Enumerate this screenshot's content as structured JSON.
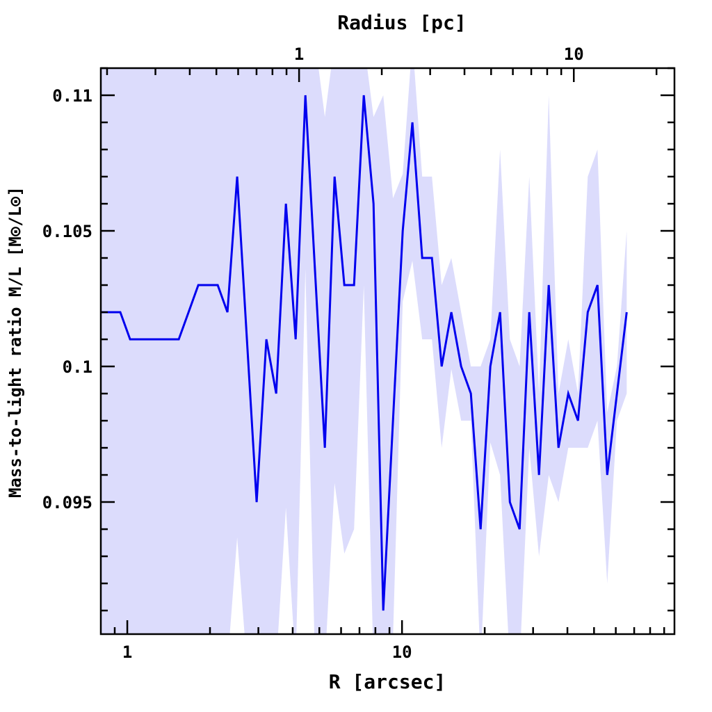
{
  "chart_data": {
    "type": "line",
    "title": "",
    "xlabel": "R [arcsec]",
    "ylabel": "Mass-to-light ratio M/L [M⊙/L⊙]",
    "top_xlabel": "Radius [pc]",
    "x_scale": "log",
    "xlim": [
      0.801,
      98.1
    ],
    "ylim": [
      0.09013,
      0.111
    ],
    "arcsec_per_pc": 4.22,
    "xticks": [
      {
        "value": 1,
        "label": "1"
      },
      {
        "value": 10,
        "label": "10"
      }
    ],
    "top_xticks": [
      {
        "value": 1,
        "label": "1"
      },
      {
        "value": 10,
        "label": "10"
      }
    ],
    "yticks": [
      {
        "value": 0.095,
        "label": "0.095"
      },
      {
        "value": 0.1,
        "label": "0.1"
      },
      {
        "value": 0.105,
        "label": "0.105"
      },
      {
        "value": 0.11,
        "label": "0.11"
      }
    ],
    "grid": false,
    "colors": {
      "line": "#0000ee",
      "band": "#dcdcfc"
    },
    "x": [
      0.801,
      0.869,
      0.943,
      1.024,
      1.111,
      1.205,
      1.308,
      1.419,
      1.539,
      1.671,
      1.813,
      1.967,
      2.134,
      2.315,
      2.512,
      2.725,
      2.957,
      3.209,
      3.482,
      3.778,
      4.1,
      4.449,
      4.825,
      5.236,
      5.681,
      6.165,
      6.689,
      7.258,
      7.875,
      8.543,
      9.271,
      10.06,
      10.91,
      11.84,
      12.85,
      13.94,
      15.12,
      16.41,
      17.81,
      19.32,
      20.96,
      22.75,
      24.69,
      26.79,
      29.06,
      31.53,
      34.21,
      37.12,
      40.28,
      43.71,
      47.42,
      51.45,
      55.83,
      60.58,
      65.73
    ],
    "series": [
      {
        "name": "M/L",
        "values": [
          0.102,
          0.102,
          0.102,
          0.101,
          0.101,
          0.101,
          0.101,
          0.101,
          0.101,
          0.102,
          0.103,
          0.103,
          0.103,
          0.102,
          0.107,
          0.101,
          0.095,
          0.101,
          0.099,
          0.106,
          0.101,
          0.11,
          0.1035,
          0.097,
          0.107,
          0.103,
          0.103,
          0.11,
          0.106,
          0.091,
          0.098,
          0.105,
          0.109,
          0.104,
          0.104,
          0.1,
          0.102,
          0.1,
          0.099,
          0.094,
          0.1,
          0.102,
          0.095,
          0.094,
          0.102,
          0.096,
          0.103,
          0.097,
          0.099,
          0.098,
          0.102,
          0.103,
          0.096,
          0.099,
          0.102
        ]
      }
    ],
    "band": {
      "name": "uncertainty",
      "upper": [
        0.112,
        0.112,
        0.112,
        0.112,
        0.112,
        0.112,
        0.112,
        0.112,
        0.112,
        0.112,
        0.112,
        0.112,
        0.112,
        0.112,
        0.112,
        0.112,
        0.112,
        0.112,
        0.112,
        0.112,
        0.112,
        0.112,
        0.112,
        0.1092,
        0.112,
        0.112,
        0.112,
        0.112,
        0.1092,
        0.11,
        0.1062,
        0.1071,
        0.112,
        0.107,
        0.107,
        0.103,
        0.104,
        0.102,
        0.1,
        0.1,
        0.101,
        0.108,
        0.101,
        0.1,
        0.107,
        0.099,
        0.11,
        0.099,
        0.101,
        0.099,
        0.107,
        0.108,
        0.0983,
        0.1,
        0.105
      ],
      "lower": [
        0.089,
        0.089,
        0.089,
        0.089,
        0.089,
        0.089,
        0.089,
        0.089,
        0.089,
        0.089,
        0.089,
        0.089,
        0.089,
        0.089,
        0.0937,
        0.089,
        0.089,
        0.089,
        0.089,
        0.0948,
        0.089,
        0.1036,
        0.089,
        0.089,
        0.0957,
        0.0931,
        0.094,
        0.103,
        0.089,
        0.089,
        0.09,
        0.1024,
        0.1039,
        0.101,
        0.101,
        0.097,
        0.0999,
        0.098,
        0.098,
        0.089,
        0.0972,
        0.096,
        0.089,
        0.089,
        0.097,
        0.093,
        0.096,
        0.095,
        0.097,
        0.097,
        0.097,
        0.098,
        0.092,
        0.098,
        0.099
      ]
    }
  }
}
